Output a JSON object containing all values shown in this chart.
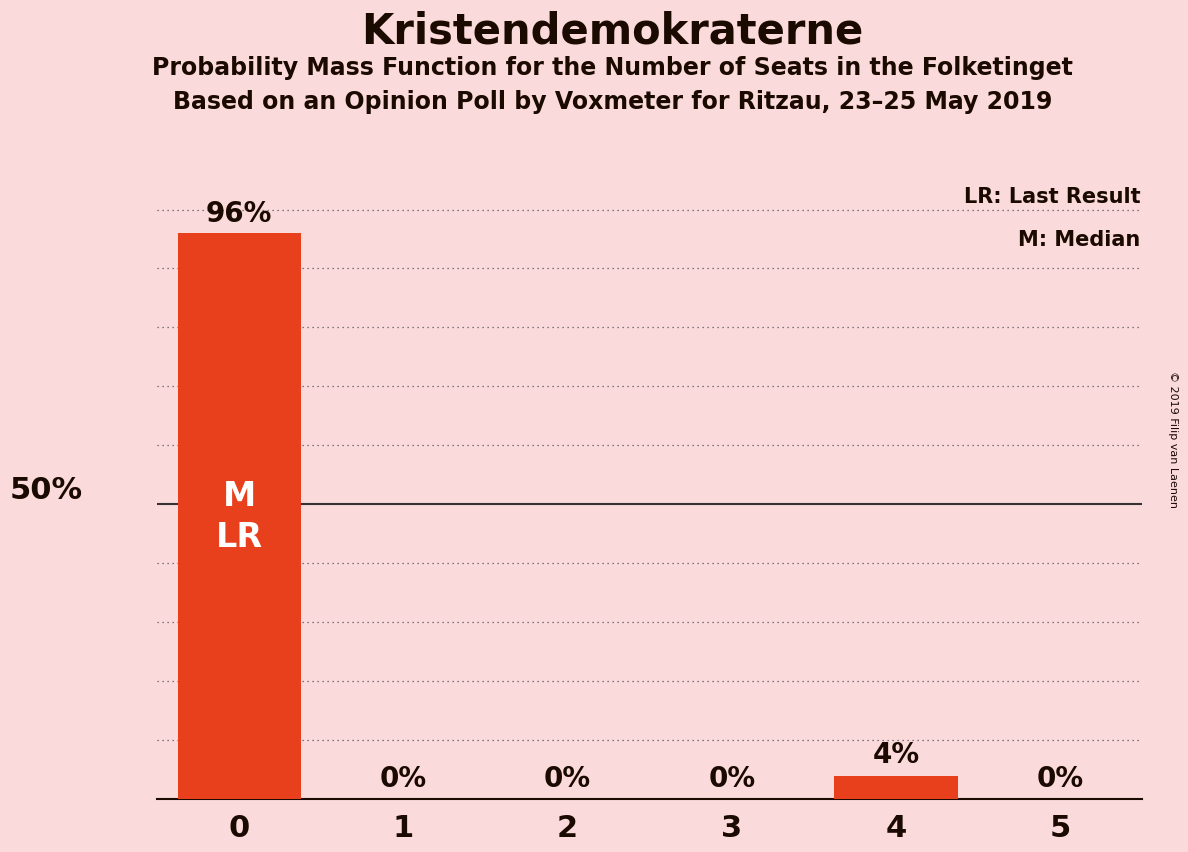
{
  "title": "Kristendemokraterne",
  "subtitle1": "Probability Mass Function for the Number of Seats in the Folketinget",
  "subtitle2": "Based on an Opinion Poll by Voxmeter for Ritzau, 23–25 May 2019",
  "copyright": "© 2019 Filip van Laenen",
  "categories": [
    0,
    1,
    2,
    3,
    4,
    5
  ],
  "values": [
    0.96,
    0.0,
    0.0,
    0.0,
    0.04,
    0.0
  ],
  "bar_color": "#E8401C",
  "background_color": "#FBDADC",
  "ylabel_text": "50%",
  "ylabel_value": 0.5,
  "ylim": [
    0,
    1.05
  ],
  "median": 0,
  "last_result": 0,
  "legend_lr": "LR: Last Result",
  "legend_m": "M: Median",
  "bar_label_color_dark": "#1a0a00",
  "bar_label_color_inside": "#ffffff",
  "dotted_gridlines": [
    0.1,
    0.2,
    0.3,
    0.4,
    0.6,
    0.7,
    0.8,
    0.9,
    1.0
  ],
  "solid_gridline": 0.5,
  "title_fontsize": 30,
  "subtitle_fontsize": 17,
  "label_fontsize": 20,
  "tick_fontsize": 22,
  "ylabel_fontsize": 22,
  "legend_fontsize": 15,
  "bar_width": 0.75
}
